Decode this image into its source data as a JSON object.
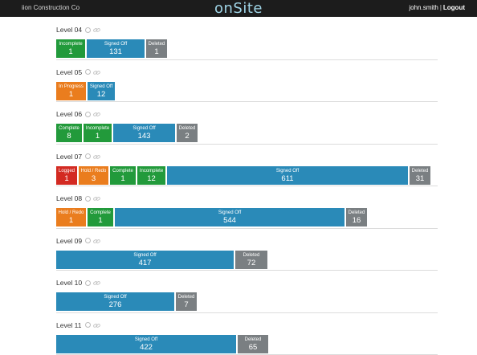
{
  "header": {
    "company": "iion Construction Co",
    "brand": "onSite",
    "user": "john.smith",
    "separator": "|",
    "logout": "Logout"
  },
  "colors": {
    "complete": "#229a3b",
    "incomplete": "#229a3b",
    "signed_off": "#2a8ab8",
    "deleted": "#7a7f82",
    "in_progress": "#ea7d1e",
    "hold_redo": "#ea7d1e",
    "logged": "#d32a22"
  },
  "icons": {
    "status": "circle-outline-icon",
    "link": "chain-link-icon"
  },
  "levels": [
    {
      "name": "Level 04",
      "bars": [
        {
          "key": "incomplete",
          "label": "Incomplete",
          "count": "1",
          "width": 36
        },
        {
          "key": "signed_off",
          "label": "Signed Off",
          "count": "131",
          "width": 72
        },
        {
          "key": "deleted",
          "label": "Deleted",
          "count": "1",
          "width": 26
        }
      ]
    },
    {
      "name": "Level 05",
      "bars": [
        {
          "key": "in_progress",
          "label": "In Progress",
          "count": "1",
          "width": 37
        },
        {
          "key": "signed_off",
          "label": "Signed Off",
          "count": "12",
          "width": 34
        }
      ]
    },
    {
      "name": "Level 06",
      "bars": [
        {
          "key": "complete",
          "label": "Complete",
          "count": "8",
          "width": 32
        },
        {
          "key": "incomplete",
          "label": "Incomplete",
          "count": "1",
          "width": 35
        },
        {
          "key": "signed_off",
          "label": "Signed Off",
          "count": "143",
          "width": 77
        },
        {
          "key": "deleted",
          "label": "Deleted",
          "count": "2",
          "width": 26
        }
      ]
    },
    {
      "name": "Level 07",
      "bars": [
        {
          "key": "logged",
          "label": "Logged",
          "count": "1",
          "width": 26
        },
        {
          "key": "hold_redo",
          "label": "Hold / Redo",
          "count": "3",
          "width": 37
        },
        {
          "key": "complete",
          "label": "Complete",
          "count": "1",
          "width": 32
        },
        {
          "key": "incomplete",
          "label": "Incomplete",
          "count": "12",
          "width": 35
        },
        {
          "key": "signed_off",
          "label": "Signed Off",
          "count": "611",
          "width": 300
        },
        {
          "key": "deleted",
          "label": "Deleted",
          "count": "31",
          "width": 26
        }
      ]
    },
    {
      "name": "Level 08",
      "bars": [
        {
          "key": "hold_redo",
          "label": "Hold / Redo",
          "count": "1",
          "width": 37
        },
        {
          "key": "complete",
          "label": "Complete",
          "count": "1",
          "width": 32
        },
        {
          "key": "signed_off",
          "label": "Signed Off",
          "count": "544",
          "width": 286
        },
        {
          "key": "deleted",
          "label": "Deleted",
          "count": "16",
          "width": 26
        }
      ]
    },
    {
      "name": "Level 09",
      "bars": [
        {
          "key": "signed_off",
          "label": "Signed Off",
          "count": "417",
          "width": 221
        },
        {
          "key": "deleted",
          "label": "Deleted",
          "count": "72",
          "width": 40
        }
      ]
    },
    {
      "name": "Level 10",
      "bars": [
        {
          "key": "signed_off",
          "label": "Signed Off",
          "count": "276",
          "width": 147
        },
        {
          "key": "deleted",
          "label": "Deleted",
          "count": "7",
          "width": 26
        }
      ]
    },
    {
      "name": "Level 11",
      "bars": [
        {
          "key": "signed_off",
          "label": "Signed Off",
          "count": "422",
          "width": 224
        },
        {
          "key": "deleted",
          "label": "Deleted",
          "count": "65",
          "width": 38
        }
      ]
    }
  ]
}
